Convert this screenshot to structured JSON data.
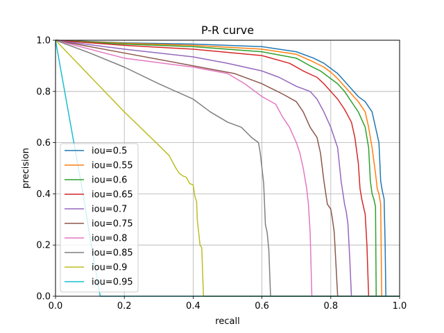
{
  "chart_data": {
    "type": "line",
    "title": "P-R curve",
    "xlabel": "recall",
    "ylabel": "precision",
    "xlim": [
      0.0,
      1.0
    ],
    "ylim": [
      0.0,
      1.0
    ],
    "grid": true,
    "legend_position": "left",
    "xticks": [
      "0.0",
      "0.2",
      "0.4",
      "0.6",
      "0.8",
      "1.0"
    ],
    "yticks": [
      "0.0",
      "0.2",
      "0.4",
      "0.6",
      "0.8",
      "1.0"
    ],
    "series": [
      {
        "name": "iou=0.5",
        "color": "#1f77b4",
        "x": [
          0,
          0.2,
          0.4,
          0.6,
          0.7,
          0.75,
          0.78,
          0.8,
          0.82,
          0.84,
          0.86,
          0.88,
          0.9,
          0.92,
          0.93,
          0.94,
          0.945,
          0.95,
          0.955,
          0.958,
          0.96,
          1.0
        ],
        "y": [
          1.0,
          0.99,
          0.985,
          0.975,
          0.955,
          0.93,
          0.91,
          0.89,
          0.87,
          0.84,
          0.81,
          0.78,
          0.76,
          0.72,
          0.66,
          0.6,
          0.45,
          0.41,
          0.38,
          0.2,
          0.0,
          0.0
        ]
      },
      {
        "name": "iou=0.55",
        "color": "#ff7f0e",
        "x": [
          0,
          0.2,
          0.4,
          0.6,
          0.7,
          0.75,
          0.78,
          0.8,
          0.82,
          0.84,
          0.86,
          0.88,
          0.9,
          0.91,
          0.92,
          0.93,
          0.935,
          0.94,
          0.945,
          0.948,
          1.0
        ],
        "y": [
          1.0,
          0.988,
          0.98,
          0.965,
          0.945,
          0.915,
          0.895,
          0.875,
          0.85,
          0.82,
          0.79,
          0.76,
          0.72,
          0.66,
          0.58,
          0.48,
          0.42,
          0.4,
          0.36,
          0.0,
          0.0
        ]
      },
      {
        "name": "iou=0.6",
        "color": "#2ca02c",
        "x": [
          0,
          0.2,
          0.4,
          0.6,
          0.7,
          0.74,
          0.77,
          0.8,
          0.82,
          0.84,
          0.86,
          0.88,
          0.9,
          0.91,
          0.915,
          0.92,
          0.925,
          0.93,
          0.932,
          1.0
        ],
        "y": [
          1.0,
          0.985,
          0.975,
          0.955,
          0.93,
          0.9,
          0.88,
          0.85,
          0.83,
          0.8,
          0.76,
          0.72,
          0.66,
          0.58,
          0.45,
          0.4,
          0.38,
          0.35,
          0.0,
          0.0
        ]
      },
      {
        "name": "iou=0.65",
        "color": "#d62728",
        "x": [
          0,
          0.2,
          0.4,
          0.6,
          0.68,
          0.72,
          0.76,
          0.78,
          0.8,
          0.82,
          0.84,
          0.86,
          0.87,
          0.88,
          0.885,
          0.89,
          0.9,
          0.905,
          0.91,
          1.0
        ],
        "y": [
          1.0,
          0.98,
          0.965,
          0.94,
          0.91,
          0.88,
          0.855,
          0.83,
          0.8,
          0.77,
          0.73,
          0.68,
          0.62,
          0.52,
          0.42,
          0.38,
          0.32,
          0.2,
          0.0,
          0.0
        ]
      },
      {
        "name": "iou=0.7",
        "color": "#9467bd",
        "x": [
          0,
          0.2,
          0.4,
          0.5,
          0.6,
          0.65,
          0.7,
          0.74,
          0.76,
          0.78,
          0.8,
          0.82,
          0.83,
          0.84,
          0.845,
          0.85,
          0.855,
          0.86,
          1.0
        ],
        "y": [
          1.0,
          0.965,
          0.935,
          0.91,
          0.88,
          0.855,
          0.82,
          0.8,
          0.77,
          0.72,
          0.66,
          0.58,
          0.45,
          0.36,
          0.33,
          0.28,
          0.15,
          0.0,
          0.0
        ]
      },
      {
        "name": "iou=0.75",
        "color": "#8c564b",
        "x": [
          0,
          0.2,
          0.4,
          0.52,
          0.6,
          0.66,
          0.7,
          0.72,
          0.74,
          0.76,
          0.77,
          0.78,
          0.79,
          0.8,
          0.805,
          0.81,
          0.82,
          1.0
        ],
        "y": [
          1.0,
          0.95,
          0.9,
          0.87,
          0.83,
          0.79,
          0.76,
          0.72,
          0.66,
          0.62,
          0.56,
          0.45,
          0.36,
          0.34,
          0.3,
          0.25,
          0.0,
          0.0
        ]
      },
      {
        "name": "iou=0.8",
        "color": "#e377c2",
        "x": [
          0,
          0.2,
          0.4,
          0.5,
          0.55,
          0.6,
          0.64,
          0.66,
          0.68,
          0.7,
          0.71,
          0.72,
          0.73,
          0.735,
          0.74,
          0.745,
          1.0
        ],
        "y": [
          1.0,
          0.93,
          0.895,
          0.87,
          0.83,
          0.78,
          0.75,
          0.7,
          0.66,
          0.6,
          0.56,
          0.5,
          0.42,
          0.36,
          0.25,
          0.0,
          0.0
        ]
      },
      {
        "name": "iou=0.85",
        "color": "#7f7f7f",
        "x": [
          0,
          0.1,
          0.2,
          0.3,
          0.4,
          0.45,
          0.5,
          0.54,
          0.57,
          0.59,
          0.595,
          0.6,
          0.605,
          0.61,
          0.615,
          0.62,
          0.625,
          1.0
        ],
        "y": [
          1.0,
          0.95,
          0.895,
          0.83,
          0.77,
          0.72,
          0.68,
          0.66,
          0.62,
          0.6,
          0.56,
          0.5,
          0.44,
          0.28,
          0.25,
          0.18,
          0.0,
          0.0
        ]
      },
      {
        "name": "iou=0.9",
        "color": "#bcbd22",
        "x": [
          0,
          0.1,
          0.2,
          0.3,
          0.33,
          0.35,
          0.36,
          0.37,
          0.38,
          0.39,
          0.4,
          0.405,
          0.41,
          0.412,
          0.42,
          0.425,
          0.43,
          0.432,
          1.0
        ],
        "y": [
          1.0,
          0.86,
          0.72,
          0.59,
          0.55,
          0.5,
          0.48,
          0.47,
          0.465,
          0.44,
          0.435,
          0.39,
          0.37,
          0.3,
          0.2,
          0.19,
          0.0,
          0.0,
          0.0
        ]
      },
      {
        "name": "iou=0.95",
        "color": "#17becf",
        "x": [
          0,
          0.04,
          0.08,
          0.11,
          0.13,
          1.0
        ],
        "y": [
          1.0,
          0.7,
          0.4,
          0.15,
          0.0,
          0.0
        ]
      }
    ]
  }
}
